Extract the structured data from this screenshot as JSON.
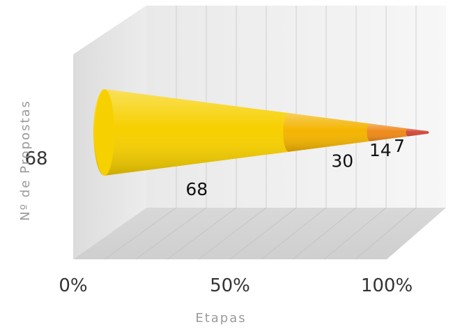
{
  "chart_data": {
    "type": "funnel",
    "orientation": "horizontal",
    "three_d": true,
    "xlabel": "Etapas",
    "ylabel": "Nº de Propostas",
    "category_label": "68",
    "x_ticks": [
      "0%",
      "50%",
      "100%"
    ],
    "grid": true,
    "segments": [
      {
        "value": 68,
        "label": "68",
        "color": "#f7d000"
      },
      {
        "value": 30,
        "label": "30",
        "color": "#f4b400"
      },
      {
        "value": 14,
        "label": "14",
        "color": "#ef8a1a"
      },
      {
        "value": 7,
        "label": "7",
        "color": "#d44a3a"
      }
    ]
  }
}
